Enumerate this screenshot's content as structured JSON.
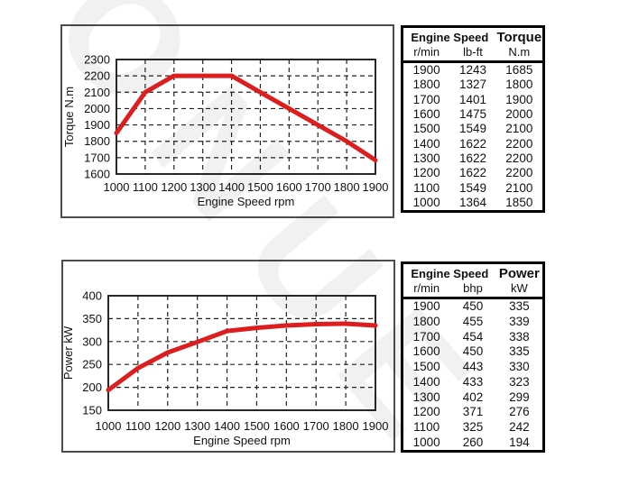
{
  "watermark": {
    "letters": "ONUE"
  },
  "colors": {
    "curve": "#dd1e1e",
    "grid": "#222222",
    "chart_box_border": "#4d4d4d",
    "table_border": "#000000"
  },
  "chart_data": [
    {
      "type": "line",
      "x": [
        1000,
        1100,
        1200,
        1300,
        1400,
        1500,
        1600,
        1700,
        1800,
        1900
      ],
      "series": [
        {
          "name": "Torque N.m",
          "values": [
            1850,
            2100,
            2200,
            2200,
            2200,
            2100,
            2000,
            1900,
            1800,
            1685
          ]
        }
      ],
      "title": "",
      "xlabel": "Engine Speed rpm",
      "ylabel": "Torque N.m",
      "xlim": [
        1000,
        1900
      ],
      "ylim": [
        1600,
        2300
      ],
      "ytick_step": 100,
      "xtick_step": 100,
      "grid": "dashed",
      "legend": "none",
      "line_color": "#dd1e1e"
    },
    {
      "type": "line",
      "x": [
        1000,
        1100,
        1200,
        1300,
        1400,
        1500,
        1600,
        1700,
        1800,
        1900
      ],
      "series": [
        {
          "name": "Power kW",
          "values": [
            194,
            242,
            276,
            299,
            323,
            330,
            335,
            338,
            339,
            335
          ]
        }
      ],
      "title": "",
      "xlabel": "Engine Speed rpm",
      "ylabel": "Power kW",
      "xlim": [
        1000,
        1900
      ],
      "ylim": [
        150,
        400
      ],
      "ytick_step": 50,
      "xtick_step": 100,
      "grid": "dashed",
      "legend": "none",
      "line_color": "#dd1e1e"
    }
  ],
  "tables": [
    {
      "group_header": "Engine Speed",
      "value_header": "Torque",
      "units": [
        "r/min",
        "lb-ft",
        "N.m"
      ],
      "rows": [
        [
          "1900",
          "1243",
          "1685"
        ],
        [
          "1800",
          "1327",
          "1800"
        ],
        [
          "1700",
          "1401",
          "1900"
        ],
        [
          "1600",
          "1475",
          "2000"
        ],
        [
          "1500",
          "1549",
          "2100"
        ],
        [
          "1400",
          "1622",
          "2200"
        ],
        [
          "1300",
          "1622",
          "2200"
        ],
        [
          "1200",
          "1622",
          "2200"
        ],
        [
          "1100",
          "1549",
          "2100"
        ],
        [
          "1000",
          "1364",
          "1850"
        ]
      ]
    },
    {
      "group_header": "Engine Speed",
      "value_header": "Power",
      "units": [
        "r/min",
        "bhp",
        "kW"
      ],
      "rows": [
        [
          "1900",
          "450",
          "335"
        ],
        [
          "1800",
          "455",
          "339"
        ],
        [
          "1700",
          "454",
          "338"
        ],
        [
          "1600",
          "450",
          "335"
        ],
        [
          "1500",
          "443",
          "330"
        ],
        [
          "1400",
          "433",
          "323"
        ],
        [
          "1300",
          "402",
          "299"
        ],
        [
          "1200",
          "371",
          "276"
        ],
        [
          "1100",
          "325",
          "242"
        ],
        [
          "1000",
          "260",
          "194"
        ]
      ]
    }
  ]
}
